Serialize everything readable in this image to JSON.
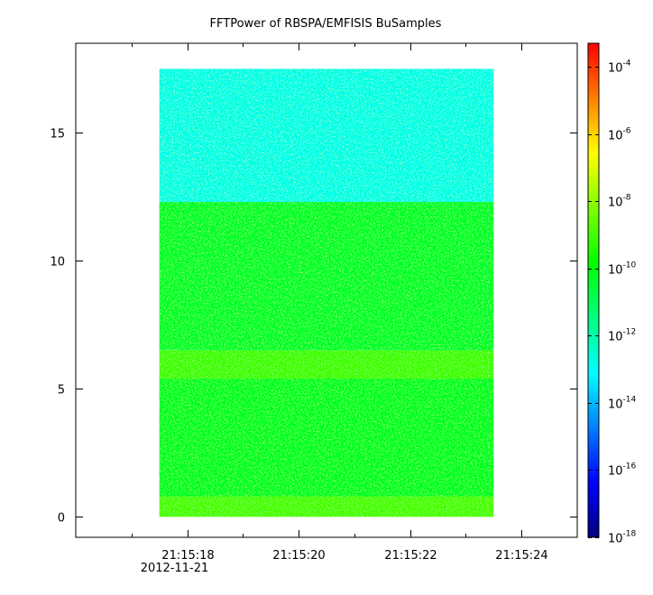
{
  "chart_data": {
    "type": "heatmap",
    "title": "FFTPower of RBSPA/EMFISIS  BuSamples",
    "xlabel": "",
    "ylabel": "",
    "x_start_time": "21:15:17.5",
    "x_end_time": "21:15:23.5",
    "x_range_seconds": [
      16.0,
      25.0
    ],
    "x_ticks": [
      {
        "value": 18,
        "label": "21:15:18",
        "sublabel": "2012-11-21"
      },
      {
        "value": 20,
        "label": "21:15:20",
        "sublabel": ""
      },
      {
        "value": 22,
        "label": "21:15:22",
        "sublabel": ""
      },
      {
        "value": 24,
        "label": "21:15:24",
        "sublabel": ""
      }
    ],
    "x_minor_ticks": [
      17,
      19,
      21,
      23
    ],
    "ylim": [
      -0.8,
      18.5
    ],
    "y_data_range": [
      0,
      17.5
    ],
    "y_ticks": [
      {
        "value": 0,
        "label": "0"
      },
      {
        "value": 5,
        "label": "5"
      },
      {
        "value": 10,
        "label": "10"
      },
      {
        "value": 15,
        "label": "15"
      }
    ],
    "bands": [
      {
        "y_from": 0.0,
        "y_to": 0.8,
        "log_power": -8.9
      },
      {
        "y_from": 0.8,
        "y_to": 5.4,
        "log_power": -10.3
      },
      {
        "y_from": 5.4,
        "y_to": 6.5,
        "log_power": -9.0
      },
      {
        "y_from": 6.5,
        "y_to": 12.3,
        "log_power": -10.4
      },
      {
        "y_from": 12.3,
        "y_to": 17.5,
        "log_power": -12.8
      }
    ],
    "colorbar": {
      "scale": "log",
      "range_exponents": [
        -18,
        -3.3
      ],
      "tick_exponents": [
        -18,
        -16,
        -14,
        -12,
        -10,
        -8,
        -6,
        -4
      ],
      "tick_base": "10",
      "colors": [
        "#00007f",
        "#0000ff",
        "#007fff",
        "#00ffff",
        "#00ff7f",
        "#00ff00",
        "#7fff00",
        "#ffff00",
        "#ff7f00",
        "#ff0000"
      ]
    }
  }
}
